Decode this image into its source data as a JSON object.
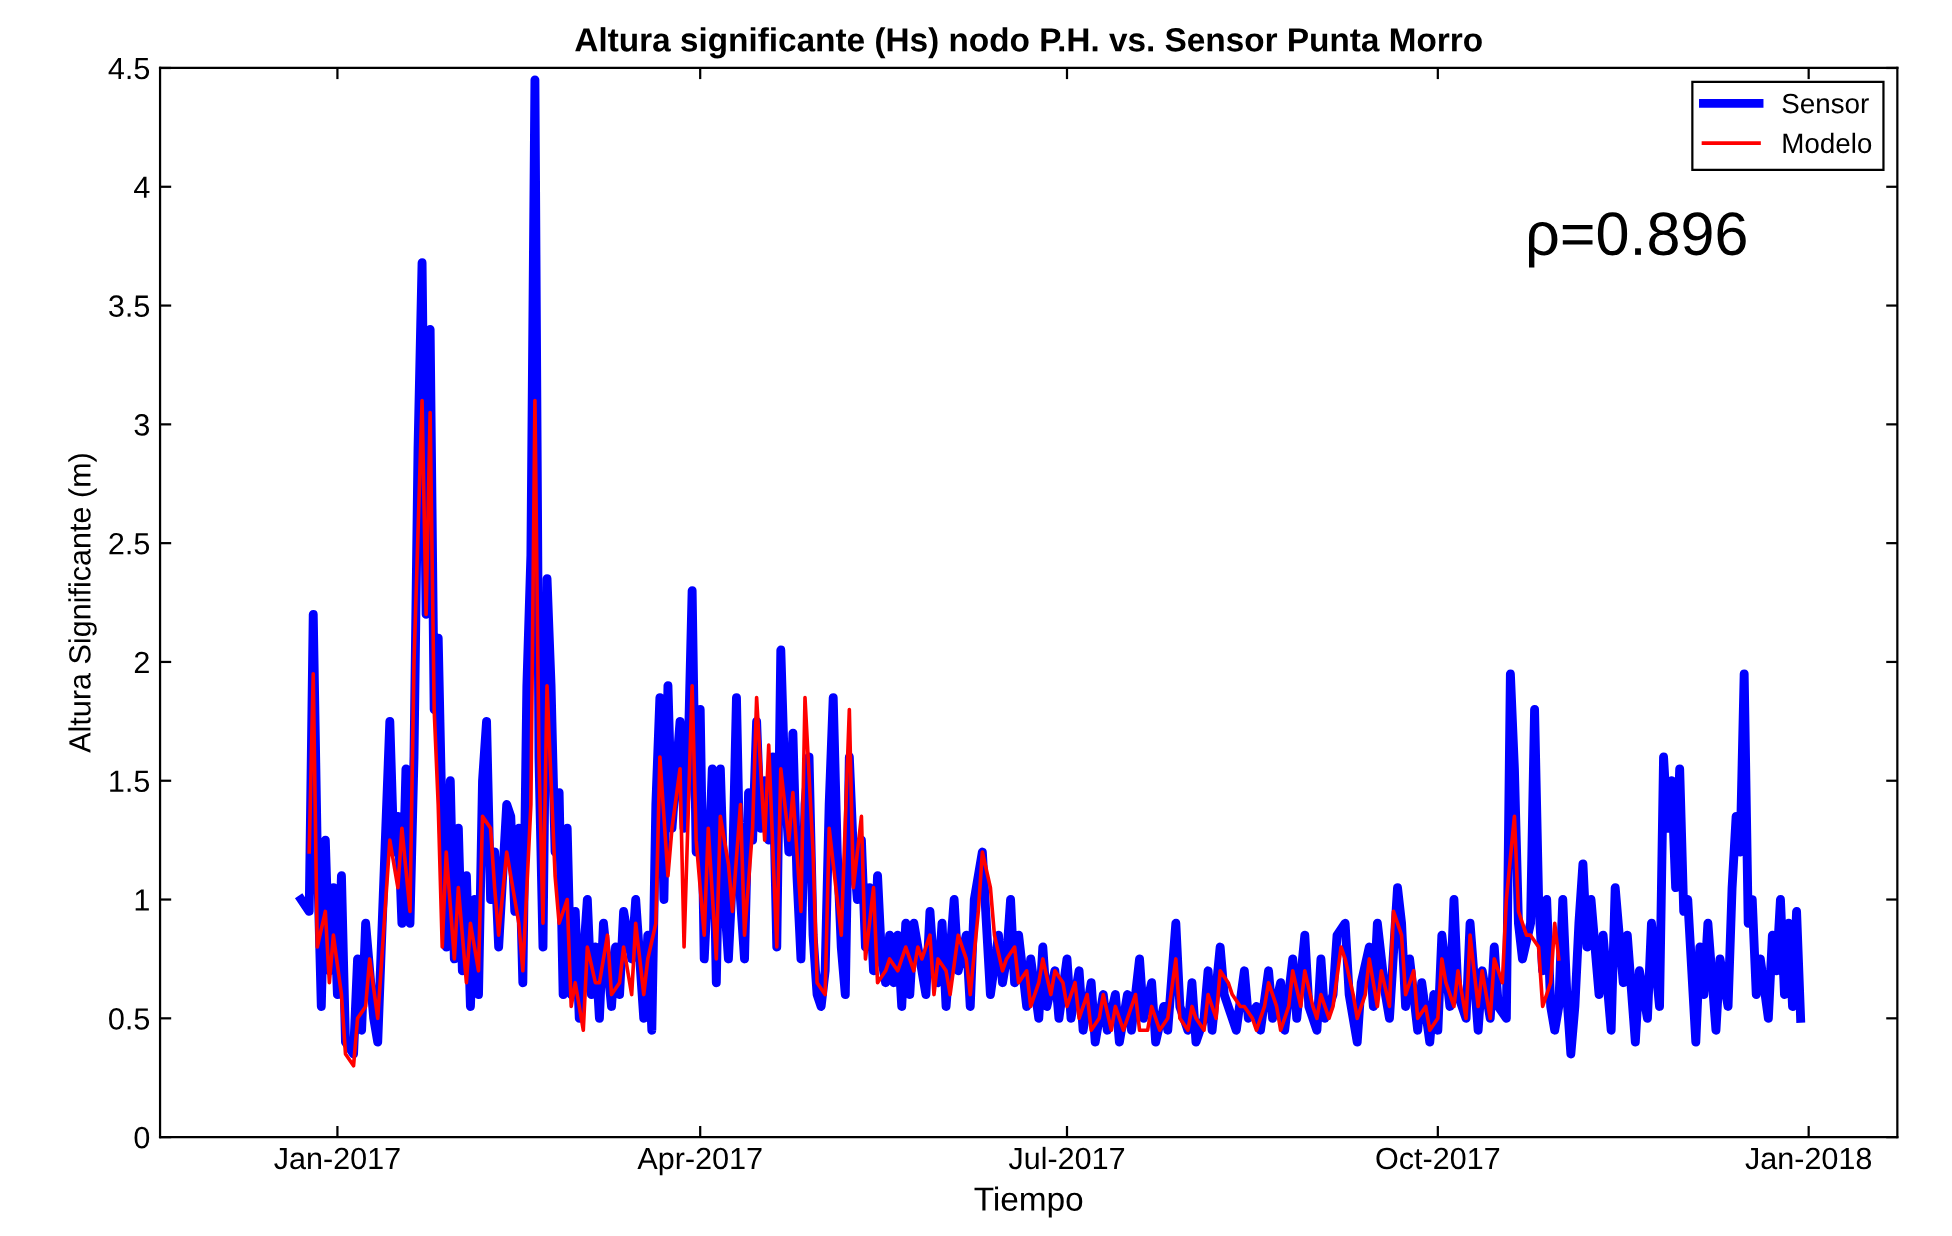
{
  "chart_data": {
    "type": "line",
    "title": "Altura significante (Hs) nodo P.H. vs. Sensor Punta Morro",
    "xlabel": "Tiempo",
    "ylabel": "Altura Significante (m)",
    "xlim": [
      "2016-11-18",
      "2018-01-23"
    ],
    "xticks": [
      {
        "value": "2017-01-01",
        "label": "Jan-2017"
      },
      {
        "value": "2017-04-01",
        "label": "Apr-2017"
      },
      {
        "value": "2017-07-01",
        "label": "Jul-2017"
      },
      {
        "value": "2017-10-01",
        "label": "Oct-2017"
      },
      {
        "value": "2018-01-01",
        "label": "Jan-2018"
      }
    ],
    "ylim": [
      0,
      4.5
    ],
    "yticks": [
      0,
      0.5,
      1,
      1.5,
      2,
      2.5,
      3,
      3.5,
      4,
      4.5
    ],
    "grid": false,
    "legend": "top right",
    "marker": "none",
    "line_style": "solid",
    "annotations": [
      "ρ=0.896"
    ],
    "series": [
      {
        "name": "Sensor",
        "color": "#0000ff",
        "x": [
          "2016-12-23",
          "2016-12-25",
          "2016-12-26",
          "2016-12-27",
          "2016-12-28",
          "2016-12-29",
          "2016-12-30",
          "2016-12-31",
          "2017-01-01",
          "2017-01-02",
          "2017-01-03",
          "2017-01-05",
          "2017-01-06",
          "2017-01-07",
          "2017-01-08",
          "2017-01-10",
          "2017-01-11",
          "2017-01-13",
          "2017-01-14",
          "2017-01-15",
          "2017-01-16",
          "2017-01-17",
          "2017-01-18",
          "2017-01-19",
          "2017-01-20",
          "2017-01-21",
          "2017-01-22",
          "2017-01-23",
          "2017-01-24",
          "2017-01-25",
          "2017-01-26",
          "2017-01-27",
          "2017-01-28",
          "2017-01-29",
          "2017-01-30",
          "2017-01-31",
          "2017-02-01",
          "2017-02-02",
          "2017-02-03",
          "2017-02-04",
          "2017-02-05",
          "2017-02-06",
          "2017-02-07",
          "2017-02-08",
          "2017-02-09",
          "2017-02-10",
          "2017-02-12",
          "2017-02-13",
          "2017-02-14",
          "2017-02-15",
          "2017-02-16",
          "2017-02-17",
          "2017-02-18",
          "2017-02-19",
          "2017-02-20",
          "2017-02-21",
          "2017-02-22",
          "2017-02-23",
          "2017-02-24",
          "2017-02-25",
          "2017-02-26",
          "2017-02-27",
          "2017-02-28",
          "2017-03-01",
          "2017-03-02",
          "2017-03-04",
          "2017-03-05",
          "2017-03-06",
          "2017-03-07",
          "2017-03-08",
          "2017-03-10",
          "2017-03-11",
          "2017-03-12",
          "2017-03-13",
          "2017-03-15",
          "2017-03-16",
          "2017-03-18",
          "2017-03-19",
          "2017-03-20",
          "2017-03-21",
          "2017-03-22",
          "2017-03-23",
          "2017-03-24",
          "2017-03-25",
          "2017-03-27",
          "2017-03-28",
          "2017-03-29",
          "2017-03-30",
          "2017-03-31",
          "2017-04-01",
          "2017-04-02",
          "2017-04-03",
          "2017-04-04",
          "2017-04-05",
          "2017-04-06",
          "2017-04-07",
          "2017-04-08",
          "2017-04-09",
          "2017-04-10",
          "2017-04-11",
          "2017-04-12",
          "2017-04-13",
          "2017-04-14",
          "2017-04-15",
          "2017-04-16",
          "2017-04-17",
          "2017-04-18",
          "2017-04-19",
          "2017-04-20",
          "2017-04-21",
          "2017-04-22",
          "2017-04-23",
          "2017-04-24",
          "2017-04-25",
          "2017-04-26",
          "2017-04-27",
          "2017-04-28",
          "2017-04-29",
          "2017-04-30",
          "2017-05-01",
          "2017-05-02",
          "2017-05-03",
          "2017-05-04",
          "2017-05-05",
          "2017-05-06",
          "2017-05-07",
          "2017-05-08",
          "2017-05-09",
          "2017-05-10",
          "2017-05-11",
          "2017-05-12",
          "2017-05-13",
          "2017-05-14",
          "2017-05-15",
          "2017-05-16",
          "2017-05-17",
          "2017-05-18",
          "2017-05-19",
          "2017-05-20",
          "2017-05-21",
          "2017-05-22",
          "2017-05-23",
          "2017-05-24",
          "2017-05-26",
          "2017-05-27",
          "2017-05-28",
          "2017-05-29",
          "2017-05-30",
          "2017-05-31",
          "2017-06-01",
          "2017-06-03",
          "2017-06-04",
          "2017-06-06",
          "2017-06-07",
          "2017-06-08",
          "2017-06-10",
          "2017-06-11",
          "2017-06-12",
          "2017-06-14",
          "2017-06-15",
          "2017-06-16",
          "2017-06-17",
          "2017-06-18",
          "2017-06-19",
          "2017-06-21",
          "2017-06-22",
          "2017-06-24",
          "2017-06-25",
          "2017-06-26",
          "2017-06-28",
          "2017-06-29",
          "2017-07-01",
          "2017-07-02",
          "2017-07-04",
          "2017-07-05",
          "2017-07-07",
          "2017-07-08",
          "2017-07-10",
          "2017-07-11",
          "2017-07-13",
          "2017-07-14",
          "2017-07-16",
          "2017-07-17",
          "2017-07-19",
          "2017-07-20",
          "2017-07-22",
          "2017-07-23",
          "2017-07-25",
          "2017-07-26",
          "2017-07-28",
          "2017-07-29",
          "2017-07-31",
          "2017-08-01",
          "2017-08-02",
          "2017-08-04",
          "2017-08-05",
          "2017-08-06",
          "2017-08-08",
          "2017-08-09",
          "2017-08-11",
          "2017-08-12",
          "2017-08-14",
          "2017-08-15",
          "2017-08-17",
          "2017-08-18",
          "2017-08-20",
          "2017-08-21",
          "2017-08-23",
          "2017-08-24",
          "2017-08-26",
          "2017-08-27",
          "2017-08-29",
          "2017-08-30",
          "2017-09-01",
          "2017-09-02",
          "2017-09-03",
          "2017-09-05",
          "2017-09-06",
          "2017-09-08",
          "2017-09-09",
          "2017-09-11",
          "2017-09-12",
          "2017-09-14",
          "2017-09-15",
          "2017-09-16",
          "2017-09-18",
          "2017-09-19",
          "2017-09-21",
          "2017-09-22",
          "2017-09-23",
          "2017-09-24",
          "2017-09-26",
          "2017-09-27",
          "2017-09-29",
          "2017-09-30",
          "2017-10-01",
          "2017-10-02",
          "2017-10-04",
          "2017-10-05",
          "2017-10-06",
          "2017-10-08",
          "2017-10-09",
          "2017-10-11",
          "2017-10-12",
          "2017-10-14",
          "2017-10-15",
          "2017-10-16",
          "2017-10-18",
          "2017-10-19",
          "2017-10-20",
          "2017-10-21",
          "2017-10-22",
          "2017-10-24",
          "2017-10-25",
          "2017-10-26",
          "2017-10-27",
          "2017-10-28",
          "2017-10-29",
          "2017-10-30",
          "2017-10-31",
          "2017-11-01",
          "2017-11-02",
          "2017-11-03",
          "2017-11-04",
          "2017-11-05",
          "2017-11-06",
          "2017-11-07",
          "2017-11-08",
          "2017-11-10",
          "2017-11-11",
          "2017-11-13",
          "2017-11-14",
          "2017-11-16",
          "2017-11-17",
          "2017-11-19",
          "2017-11-20",
          "2017-11-22",
          "2017-11-23",
          "2017-11-25",
          "2017-11-26",
          "2017-11-27",
          "2017-11-28",
          "2017-11-29",
          "2017-11-30",
          "2017-12-01",
          "2017-12-02",
          "2017-12-03",
          "2017-12-04",
          "2017-12-05",
          "2017-12-06",
          "2017-12-07",
          "2017-12-09",
          "2017-12-10",
          "2017-12-12",
          "2017-12-13",
          "2017-12-14",
          "2017-12-15",
          "2017-12-16",
          "2017-12-17",
          "2017-12-18",
          "2017-12-19",
          "2017-12-20",
          "2017-12-22",
          "2017-12-23",
          "2017-12-24",
          "2017-12-25",
          "2017-12-26",
          "2017-12-27",
          "2017-12-28",
          "2017-12-29",
          "2017-12-30"
        ],
        "values": [
          1.0,
          0.95,
          2.2,
          1.2,
          0.55,
          1.25,
          0.7,
          1.05,
          0.6,
          1.1,
          0.4,
          0.35,
          0.75,
          0.45,
          0.9,
          0.5,
          0.4,
          1.3,
          1.75,
          1.2,
          1.35,
          0.9,
          1.55,
          0.9,
          1.6,
          2.9,
          3.68,
          2.2,
          3.4,
          1.8,
          2.1,
          1.3,
          0.8,
          1.5,
          0.75,
          1.3,
          0.7,
          1.1,
          0.55,
          1.0,
          0.6,
          1.5,
          1.75,
          1.0,
          1.2,
          0.8,
          1.4,
          1.35,
          0.95,
          1.3,
          0.65,
          1.9,
          2.45,
          4.45,
          1.6,
          0.8,
          2.35,
          1.9,
          1.2,
          1.45,
          0.6,
          1.3,
          0.6,
          0.95,
          0.5,
          1.0,
          0.6,
          0.8,
          0.5,
          0.9,
          0.55,
          0.8,
          0.6,
          0.95,
          0.75,
          1.0,
          0.5,
          0.85,
          0.45,
          1.4,
          1.85,
          1.0,
          1.9,
          1.3,
          1.75,
          1.3,
          1.6,
          2.3,
          1.2,
          1.8,
          0.75,
          1.1,
          1.55,
          0.65,
          1.55,
          1.0,
          0.75,
          1.1,
          1.85,
          1.0,
          0.75,
          1.45,
          1.25,
          1.75,
          1.3,
          1.5,
          1.25,
          1.6,
          0.8,
          2.05,
          1.5,
          1.2,
          1.7,
          1.1,
          0.75,
          1.4,
          1.6,
          0.85,
          0.6,
          0.55,
          0.7,
          1.4,
          1.85,
          1.2,
          0.8,
          0.6,
          1.6,
          1.2,
          1.0,
          1.25,
          0.8,
          1.05,
          0.7,
          1.1,
          0.75,
          0.65,
          0.85,
          0.65,
          0.85,
          0.55,
          0.9,
          0.6,
          0.9,
          0.7,
          0.6,
          0.95,
          0.7,
          0.65,
          0.9,
          0.55,
          1.0,
          0.7,
          0.85,
          0.55,
          1.0,
          1.2,
          0.9,
          0.6,
          0.85,
          0.65,
          0.75,
          1.0,
          0.65,
          0.85,
          0.55,
          0.75,
          0.5,
          0.8,
          0.55,
          0.7,
          0.5,
          0.75,
          0.5,
          0.7,
          0.45,
          0.65,
          0.4,
          0.6,
          0.45,
          0.6,
          0.4,
          0.6,
          0.45,
          0.75,
          0.5,
          0.65,
          0.4,
          0.55,
          0.45,
          0.9,
          0.55,
          0.45,
          0.65,
          0.4,
          0.5,
          0.7,
          0.45,
          0.8,
          0.6,
          0.5,
          0.45,
          0.7,
          0.5,
          0.55,
          0.45,
          0.7,
          0.5,
          0.65,
          0.45,
          0.75,
          0.5,
          0.85,
          0.55,
          0.45,
          0.75,
          0.5,
          0.6,
          0.85,
          0.9,
          0.6,
          0.4,
          0.65,
          0.8,
          0.55,
          0.9,
          0.6,
          0.5,
          1.05,
          0.9,
          0.55,
          0.75,
          0.45,
          0.65,
          0.4,
          0.6,
          0.45,
          0.85,
          0.55,
          1.0,
          0.6,
          0.5,
          0.9,
          0.45,
          0.7,
          0.5,
          0.8,
          0.55,
          0.5,
          1.95,
          1.55,
          0.9,
          0.75,
          0.9,
          1.8,
          1.0,
          0.7,
          1.0,
          0.55,
          0.45,
          0.55,
          1.0,
          0.6,
          0.35,
          0.55,
          0.9,
          1.15,
          0.8,
          1.0,
          0.6,
          0.85,
          0.45,
          1.05,
          0.65,
          0.85,
          0.4,
          0.7,
          0.5,
          0.9,
          0.55,
          1.6,
          1.3,
          1.5,
          1.05,
          1.55,
          0.95,
          1.0,
          0.7,
          0.4,
          0.8,
          0.6,
          0.9,
          0.45,
          0.75,
          0.55,
          1.05,
          1.35,
          1.2,
          1.95,
          0.9,
          1.0,
          0.6,
          0.75,
          0.5,
          0.85,
          0.7,
          1.0,
          0.6,
          0.9,
          0.55,
          0.95,
          0.5
        ]
      },
      {
        "name": "Modelo",
        "color": "#ff0000",
        "x": [
          "2016-12-25",
          "2016-12-26",
          "2016-12-27",
          "2016-12-29",
          "2016-12-30",
          "2016-12-31",
          "2017-01-02",
          "2017-01-03",
          "2017-01-05",
          "2017-01-06",
          "2017-01-08",
          "2017-01-09",
          "2017-01-11",
          "2017-01-13",
          "2017-01-14",
          "2017-01-16",
          "2017-01-17",
          "2017-01-19",
          "2017-01-20",
          "2017-01-22",
          "2017-01-23",
          "2017-01-24",
          "2017-01-25",
          "2017-01-26",
          "2017-01-27",
          "2017-01-28",
          "2017-01-30",
          "2017-01-31",
          "2017-02-02",
          "2017-02-03",
          "2017-02-05",
          "2017-02-06",
          "2017-02-08",
          "2017-02-09",
          "2017-02-10",
          "2017-02-12",
          "2017-02-13",
          "2017-02-15",
          "2017-02-16",
          "2017-02-18",
          "2017-02-19",
          "2017-02-20",
          "2017-02-21",
          "2017-02-22",
          "2017-02-24",
          "2017-02-25",
          "2017-02-27",
          "2017-02-28",
          "2017-03-01",
          "2017-03-03",
          "2017-03-04",
          "2017-03-06",
          "2017-03-07",
          "2017-03-09",
          "2017-03-10",
          "2017-03-12",
          "2017-03-13",
          "2017-03-15",
          "2017-03-16",
          "2017-03-18",
          "2017-03-19",
          "2017-03-21",
          "2017-03-22",
          "2017-03-24",
          "2017-03-25",
          "2017-03-27",
          "2017-03-28",
          "2017-03-30",
          "2017-03-31",
          "2017-04-02",
          "2017-04-03",
          "2017-04-05",
          "2017-04-06",
          "2017-04-08",
          "2017-04-09",
          "2017-04-11",
          "2017-04-12",
          "2017-04-14",
          "2017-04-15",
          "2017-04-17",
          "2017-04-18",
          "2017-04-20",
          "2017-04-21",
          "2017-04-23",
          "2017-04-24",
          "2017-04-26",
          "2017-04-27",
          "2017-04-29",
          "2017-04-30",
          "2017-05-02",
          "2017-05-03",
          "2017-05-05",
          "2017-05-06",
          "2017-05-08",
          "2017-05-09",
          "2017-05-11",
          "2017-05-12",
          "2017-05-14",
          "2017-05-15",
          "2017-05-17",
          "2017-05-18",
          "2017-05-20",
          "2017-05-21",
          "2017-05-22",
          "2017-05-24",
          "2017-05-25",
          "2017-05-26",
          "2017-05-28",
          "2017-05-29",
          "2017-05-30",
          "2017-06-01",
          "2017-06-02",
          "2017-06-04",
          "2017-06-06",
          "2017-06-07",
          "2017-06-09",
          "2017-06-10",
          "2017-06-12",
          "2017-06-13",
          "2017-06-15",
          "2017-06-16",
          "2017-06-18",
          "2017-06-19",
          "2017-06-21",
          "2017-06-22",
          "2017-06-24",
          "2017-06-25",
          "2017-06-27",
          "2017-06-28",
          "2017-06-30",
          "2017-07-01",
          "2017-07-03",
          "2017-07-04",
          "2017-07-06",
          "2017-07-07",
          "2017-07-09",
          "2017-07-10",
          "2017-07-12",
          "2017-07-13",
          "2017-07-15",
          "2017-07-16",
          "2017-07-18",
          "2017-07-19",
          "2017-07-21",
          "2017-07-22",
          "2017-07-24",
          "2017-07-26",
          "2017-07-28",
          "2017-07-29",
          "2017-07-31",
          "2017-08-01",
          "2017-08-02",
          "2017-08-04",
          "2017-08-05",
          "2017-08-07",
          "2017-08-08",
          "2017-08-10",
          "2017-08-11",
          "2017-08-13",
          "2017-08-14",
          "2017-08-16",
          "2017-08-17",
          "2017-08-19",
          "2017-08-20",
          "2017-08-22",
          "2017-08-23",
          "2017-08-25",
          "2017-08-26",
          "2017-08-28",
          "2017-08-29",
          "2017-08-31",
          "2017-09-01",
          "2017-09-02",
          "2017-09-04",
          "2017-09-05",
          "2017-09-07",
          "2017-09-08",
          "2017-09-10",
          "2017-09-11",
          "2017-09-13",
          "2017-09-14",
          "2017-09-16",
          "2017-09-17",
          "2017-09-19",
          "2017-09-20",
          "2017-09-22",
          "2017-09-23",
          "2017-09-25",
          "2017-09-26",
          "2017-09-28",
          "2017-09-29",
          "2017-10-01",
          "2017-10-02",
          "2017-10-03",
          "2017-10-05",
          "2017-10-06",
          "2017-10-08",
          "2017-10-09",
          "2017-10-11",
          "2017-10-12",
          "2017-10-14",
          "2017-10-15",
          "2017-10-17",
          "2017-10-18",
          "2017-10-20",
          "2017-10-21",
          "2017-10-23",
          "2017-10-24",
          "2017-10-26",
          "2017-10-27",
          "2017-10-29",
          "2017-10-30",
          "2017-10-31"
        ],
        "values": [
          1.2,
          1.95,
          0.8,
          0.95,
          0.65,
          0.85,
          0.6,
          0.35,
          0.3,
          0.5,
          0.55,
          0.75,
          0.5,
          1.0,
          1.25,
          1.05,
          1.3,
          0.95,
          2.0,
          3.1,
          2.2,
          3.05,
          1.8,
          1.4,
          0.8,
          1.2,
          0.75,
          1.05,
          0.65,
          0.9,
          0.7,
          1.35,
          1.3,
          1.05,
          0.85,
          1.2,
          1.1,
          0.9,
          0.7,
          1.4,
          3.1,
          1.6,
          0.9,
          1.9,
          1.1,
          0.9,
          1.0,
          0.55,
          0.65,
          0.45,
          0.8,
          0.65,
          0.65,
          0.85,
          0.6,
          0.65,
          0.8,
          0.6,
          0.9,
          0.6,
          0.75,
          0.9,
          1.6,
          1.1,
          1.3,
          1.55,
          0.8,
          1.9,
          1.25,
          0.85,
          1.3,
          0.75,
          1.35,
          1.15,
          0.95,
          1.4,
          0.85,
          1.3,
          1.85,
          1.25,
          1.65,
          0.8,
          1.55,
          1.25,
          1.45,
          0.95,
          1.85,
          1.2,
          0.65,
          0.6,
          1.3,
          1.0,
          0.85,
          1.8,
          1.05,
          1.35,
          0.75,
          1.05,
          0.65,
          0.7,
          0.75,
          0.7,
          0.75,
          0.8,
          0.7,
          0.8,
          0.75,
          0.85,
          0.6,
          0.75,
          0.7,
          0.6,
          0.85,
          0.75,
          0.6,
          0.95,
          1.2,
          1.05,
          0.85,
          0.7,
          0.75,
          0.8,
          0.65,
          0.7,
          0.55,
          0.65,
          0.75,
          0.6,
          0.7,
          0.65,
          0.55,
          0.65,
          0.5,
          0.6,
          0.45,
          0.5,
          0.6,
          0.45,
          0.55,
          0.45,
          0.5,
          0.6,
          0.45,
          0.45,
          0.55,
          0.45,
          0.5,
          0.75,
          0.5,
          0.45,
          0.55,
          0.5,
          0.45,
          0.6,
          0.5,
          0.7,
          0.65,
          0.6,
          0.55,
          0.55,
          0.5,
          0.45,
          0.55,
          0.65,
          0.55,
          0.45,
          0.55,
          0.7,
          0.55,
          0.7,
          0.55,
          0.5,
          0.6,
          0.5,
          0.55,
          0.8,
          0.75,
          0.6,
          0.5,
          0.6,
          0.75,
          0.55,
          0.7,
          0.55,
          0.95,
          0.85,
          0.6,
          0.7,
          0.5,
          0.55,
          0.45,
          0.5,
          0.75,
          0.65,
          0.55,
          0.7,
          0.5,
          0.85,
          0.55,
          0.7,
          0.5,
          0.75,
          0.65,
          1.0,
          1.35,
          0.95,
          0.85,
          0.85,
          0.8,
          0.55,
          0.65,
          0.9,
          0.75
        ]
      }
    ]
  }
}
